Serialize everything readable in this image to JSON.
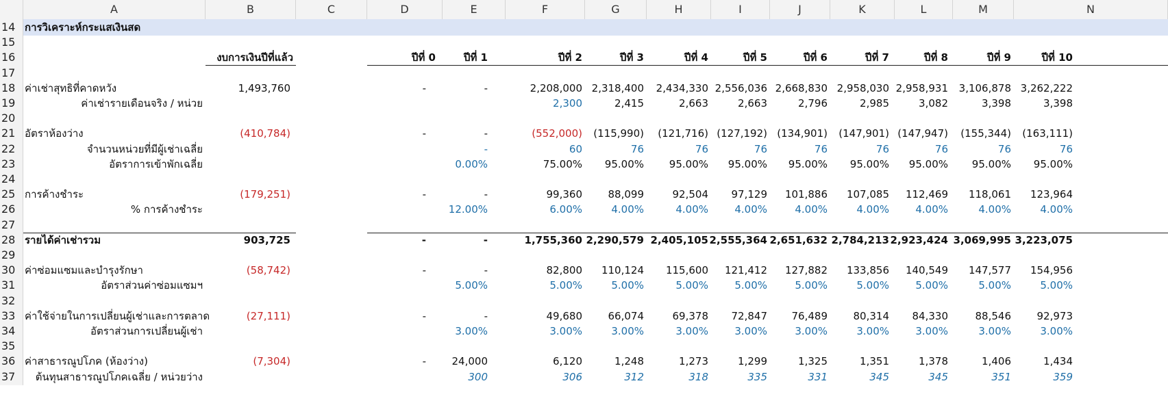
{
  "columns": [
    "A",
    "B",
    "C",
    "D",
    "E",
    "F",
    "G",
    "H",
    "I",
    "J",
    "K",
    "L",
    "M",
    "N"
  ],
  "title": "การวิเคราะห์กระแสเงินสด",
  "headers": {
    "budget": "งบการเงินปีที่แล้ว",
    "years": [
      "ปีที่ 0",
      "ปีที่ 1",
      "ปีที่ 2",
      "ปีที่ 3",
      "ปีที่ 4",
      "ปีที่ 5",
      "ปีที่ 6",
      "ปีที่ 7",
      "ปีที่ 8",
      "ปีที่ 9",
      "ปีที่ 10"
    ]
  },
  "rows": [
    {
      "n": "14",
      "type": "title"
    },
    {
      "n": "15"
    },
    {
      "n": "16",
      "type": "header"
    },
    {
      "n": "17"
    },
    {
      "n": "18",
      "label": "ค่าเช่าสุทธิที่คาดหวัง",
      "b": "1,493,760",
      "vals": [
        "-",
        "-",
        "2,208,000",
        "2,318,400",
        "2,434,330",
        "2,556,036",
        "2,668,830",
        "2,958,030",
        "2,958,931",
        "3,106,878",
        "3,262,222"
      ]
    },
    {
      "n": "19",
      "label": "ค่าเช่ารายเดือนจริง / หน่วย",
      "indent": true,
      "vals": [
        "",
        "",
        "2,300",
        "2,415",
        "2,663",
        "2,663",
        "2,796",
        "2,985",
        "3,082",
        "3,398",
        "3,398"
      ],
      "blue": [
        2
      ]
    },
    {
      "n": "20"
    },
    {
      "n": "21",
      "label": "อัตราห้องว่าง",
      "b": "(410,784)",
      "bred": true,
      "vals": [
        "-",
        "-",
        "(552,000)",
        "(115,990)",
        "(121,716)",
        "(127,192)",
        "(134,901)",
        "(147,901)",
        "(147,947)",
        "(155,344)",
        "(163,111)"
      ],
      "red": [
        2
      ]
    },
    {
      "n": "22",
      "label": "จำนวนหน่วยที่มีผู้เช่าเฉลี่ย",
      "indent": true,
      "vals": [
        "",
        "-",
        "60",
        "76",
        "76",
        "76",
        "76",
        "76",
        "76",
        "76",
        "76"
      ],
      "allblue": true
    },
    {
      "n": "23",
      "label": "อัตราการเข้าพักเฉลี่ย",
      "indent": true,
      "vals": [
        "",
        "0.00%",
        "75.00%",
        "95.00%",
        "95.00%",
        "95.00%",
        "95.00%",
        "95.00%",
        "95.00%",
        "95.00%",
        "95.00%"
      ],
      "blue": [
        1
      ]
    },
    {
      "n": "24"
    },
    {
      "n": "25",
      "label": "การค้างชำระ",
      "b": "(179,251)",
      "bred": true,
      "vals": [
        "-",
        "-",
        "99,360",
        "88,099",
        "92,504",
        "97,129",
        "101,886",
        "107,085",
        "112,469",
        "118,061",
        "123,964"
      ]
    },
    {
      "n": "26",
      "label": "% การค้างชำระ",
      "indent": true,
      "vals": [
        "",
        "12.00%",
        "6.00%",
        "4.00%",
        "4.00%",
        "4.00%",
        "4.00%",
        "4.00%",
        "4.00%",
        "4.00%",
        "4.00%"
      ],
      "allblue": true
    },
    {
      "n": "27",
      "type": "lineabove"
    },
    {
      "n": "28",
      "label": "รายได้ค่าเช่ารวม",
      "bold": true,
      "b": "903,725",
      "vals": [
        "-",
        "-",
        "1,755,360",
        "2,290,579",
        "2,405,105",
        "2,555,364",
        "2,651,632",
        "2,784,213",
        "2,923,424",
        "3,069,995",
        "3,223,075"
      ]
    },
    {
      "n": "29"
    },
    {
      "n": "30",
      "label": "ค่าซ่อมแซมและบำรุงรักษา",
      "b": "(58,742)",
      "bred": true,
      "vals": [
        "-",
        "-",
        "82,800",
        "110,124",
        "115,600",
        "121,412",
        "127,882",
        "133,856",
        "140,549",
        "147,577",
        "154,956"
      ]
    },
    {
      "n": "31",
      "label": "อัตราส่วนค่าซ่อมแซมฯ",
      "indent": true,
      "vals": [
        "",
        "5.00%",
        "5.00%",
        "5.00%",
        "5.00%",
        "5.00%",
        "5.00%",
        "5.00%",
        "5.00%",
        "5.00%",
        "5.00%"
      ],
      "allblue": true
    },
    {
      "n": "32"
    },
    {
      "n": "33",
      "label": "ค่าใช้จ่ายในการเปลี่ยนผู้เช่าและการตลาด",
      "b": "(27,111)",
      "bred": true,
      "vals": [
        "-",
        "-",
        "49,680",
        "66,074",
        "69,378",
        "72,847",
        "76,489",
        "80,314",
        "84,330",
        "88,546",
        "92,973"
      ]
    },
    {
      "n": "34",
      "label": "อัตราส่วนการเปลี่ยนผู้เช่า",
      "indent": true,
      "vals": [
        "",
        "3.00%",
        "3.00%",
        "3.00%",
        "3.00%",
        "3.00%",
        "3.00%",
        "3.00%",
        "3.00%",
        "3.00%",
        "3.00%"
      ],
      "allblue": true
    },
    {
      "n": "35"
    },
    {
      "n": "36",
      "label": "ค่าสาธารณูปโภค (ห้องว่าง)",
      "b": "(7,304)",
      "bred": true,
      "vals": [
        "-",
        "24,000",
        "6,120",
        "1,248",
        "1,273",
        "1,299",
        "1,325",
        "1,351",
        "1,378",
        "1,406",
        "1,434"
      ]
    },
    {
      "n": "37",
      "label": "ต้นทุนสาธารณูปโภคเฉลี่ย / หน่วยว่าง",
      "indent": true,
      "vals": [
        "",
        "300",
        "306",
        "312",
        "318",
        "335",
        "331",
        "345",
        "345",
        "351",
        "359"
      ],
      "allblue": true,
      "italic": true
    }
  ]
}
